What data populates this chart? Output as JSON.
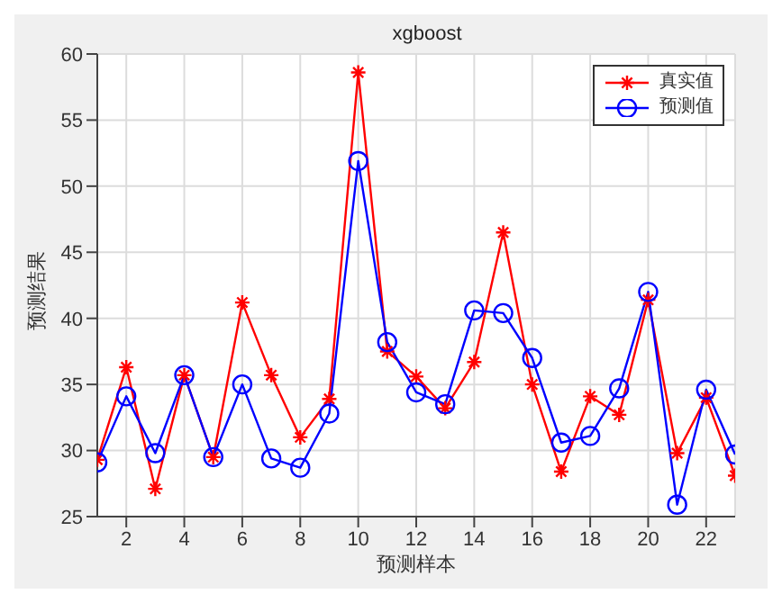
{
  "chart_data": {
    "type": "line",
    "title": "xgboost",
    "xlabel": "预测样本",
    "ylabel": "预测结果",
    "x": [
      1,
      2,
      3,
      4,
      5,
      6,
      7,
      8,
      9,
      10,
      11,
      12,
      13,
      14,
      15,
      16,
      17,
      18,
      19,
      20,
      21,
      22,
      23
    ],
    "series": [
      {
        "name": "真实值",
        "color": "#ff0000",
        "marker": "cross",
        "values": [
          29.3,
          36.3,
          27.1,
          35.7,
          29.5,
          41.2,
          35.7,
          31.0,
          33.9,
          58.6,
          37.5,
          35.6,
          33.2,
          36.7,
          46.5,
          35.0,
          28.4,
          34.1,
          32.7,
          41.4,
          29.8,
          34.0,
          28.1
        ]
      },
      {
        "name": "预测值",
        "color": "#0000ff",
        "marker": "circle",
        "values": [
          29.1,
          34.1,
          29.8,
          35.7,
          29.5,
          35.0,
          29.4,
          28.7,
          32.8,
          51.9,
          38.2,
          34.4,
          33.5,
          40.6,
          40.4,
          37.0,
          30.6,
          31.1,
          34.7,
          42.0,
          25.9,
          34.6,
          29.7
        ]
      }
    ],
    "xlim": [
      1,
      23
    ],
    "xticks": [
      2,
      4,
      6,
      8,
      10,
      12,
      14,
      16,
      18,
      20,
      22
    ],
    "ylim": [
      25,
      60
    ],
    "yticks": [
      25,
      30,
      35,
      40,
      45,
      50,
      55,
      60
    ],
    "grid": true,
    "legend": "top right",
    "line_style": "solid"
  }
}
